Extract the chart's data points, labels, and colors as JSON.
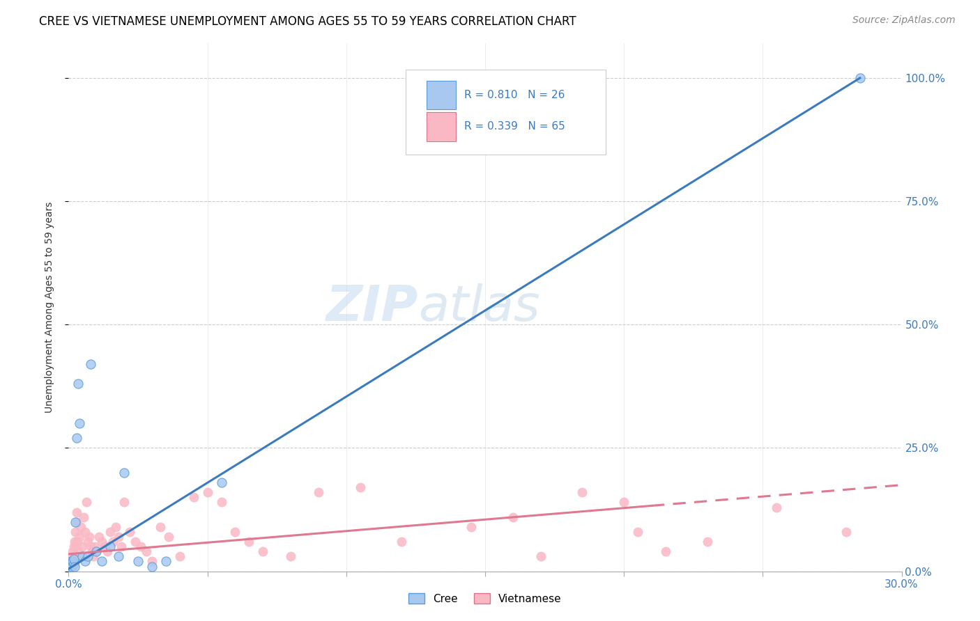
{
  "title": "CREE VS VIETNAMESE UNEMPLOYMENT AMONG AGES 55 TO 59 YEARS CORRELATION CHART",
  "source": "Source: ZipAtlas.com",
  "ylabel": "Unemployment Among Ages 55 to 59 years",
  "yticks_labels": [
    "0.0%",
    "25.0%",
    "50.0%",
    "75.0%",
    "100.0%"
  ],
  "ytick_vals": [
    0,
    25,
    50,
    75,
    100
  ],
  "xtick_vals": [
    0,
    5,
    10,
    15,
    20,
    25,
    30
  ],
  "xlim": [
    0,
    30
  ],
  "ylim": [
    0,
    107
  ],
  "watermark_zip": "ZIP",
  "watermark_atlas": "atlas",
  "legend_cree_label": "Cree",
  "legend_viet_label": "Vietnamese",
  "cree_color": "#a8c8f0",
  "cree_edge_color": "#5b9bd5",
  "viet_color": "#f9b8c4",
  "viet_edge_color": "#e07090",
  "cree_line_color": "#3a7abf",
  "viet_line_color": "#e07890",
  "cree_line_x0": 0.0,
  "cree_line_y0": 0.5,
  "cree_line_x1": 28.5,
  "cree_line_y1": 100.0,
  "viet_line_x0": 0.0,
  "viet_line_y0": 3.5,
  "viet_line_x1_solid": 21.0,
  "viet_line_x1_dash": 30.0,
  "viet_line_y1": 17.5,
  "cree_scatter_x": [
    0.05,
    0.08,
    0.1,
    0.12,
    0.15,
    0.18,
    0.2,
    0.22,
    0.25,
    0.3,
    0.35,
    0.4,
    0.5,
    0.6,
    0.7,
    0.8,
    1.0,
    1.2,
    1.5,
    1.8,
    2.0,
    2.5,
    3.0,
    3.5,
    5.5,
    28.5
  ],
  "cree_scatter_y": [
    1,
    2,
    1.5,
    1,
    2,
    1.5,
    2.5,
    1,
    10,
    27,
    38,
    30,
    3,
    2,
    3,
    42,
    4,
    2,
    5,
    3,
    20,
    2,
    1,
    2,
    18,
    100
  ],
  "viet_scatter_x": [
    0.05,
    0.08,
    0.1,
    0.12,
    0.15,
    0.18,
    0.2,
    0.22,
    0.25,
    0.28,
    0.3,
    0.32,
    0.35,
    0.38,
    0.4,
    0.45,
    0.5,
    0.55,
    0.6,
    0.65,
    0.7,
    0.75,
    0.8,
    0.85,
    0.9,
    0.95,
    1.0,
    1.1,
    1.2,
    1.3,
    1.4,
    1.5,
    1.6,
    1.7,
    1.8,
    1.9,
    2.0,
    2.2,
    2.4,
    2.6,
    2.8,
    3.0,
    3.3,
    3.6,
    4.0,
    4.5,
    5.0,
    5.5,
    6.0,
    6.5,
    7.0,
    8.0,
    9.0,
    10.5,
    12.0,
    14.5,
    16.0,
    17.0,
    18.5,
    20.0,
    20.5,
    21.5,
    23.0,
    25.5,
    28.0
  ],
  "viet_scatter_y": [
    1.5,
    2,
    1,
    3,
    4,
    2,
    5,
    6,
    8,
    10,
    12,
    6,
    4,
    3,
    7,
    9,
    5,
    11,
    8,
    14,
    6,
    7,
    5,
    4,
    3,
    5,
    4,
    7,
    6,
    5,
    4,
    8,
    6,
    9,
    7,
    5,
    14,
    8,
    6,
    5,
    4,
    2,
    9,
    7,
    3,
    15,
    16,
    14,
    8,
    6,
    4,
    3,
    16,
    17,
    6,
    9,
    11,
    3,
    16,
    14,
    8,
    4,
    6,
    13,
    8
  ],
  "title_fontsize": 12,
  "axis_label_fontsize": 10,
  "tick_fontsize": 11,
  "legend_fontsize": 12,
  "source_fontsize": 10
}
